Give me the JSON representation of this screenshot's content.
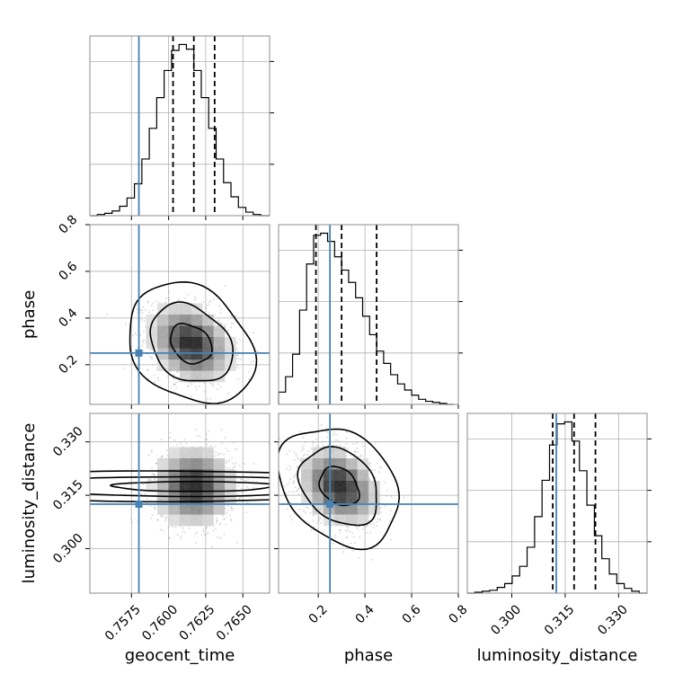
{
  "chart_data": {
    "type": "corner",
    "parameters": [
      "geocent_time",
      "phase",
      "luminosity_distance"
    ],
    "injection": {
      "geocent_time": 0.758,
      "phase": 0.25,
      "luminosity_distance": 0.3125
    },
    "quantiles": {
      "geocent_time": [
        0.7603,
        0.7617,
        0.7631
      ],
      "phase": [
        0.19,
        0.3,
        0.45
      ],
      "luminosity_distance": [
        0.3115,
        0.3175,
        0.3235
      ]
    },
    "axes": {
      "geocent_time": {
        "range": [
          0.7547,
          0.7668
        ],
        "ticks": [
          0.7575,
          0.76,
          0.7625,
          0.765
        ],
        "tick_labels": [
          "0.7575",
          "0.7600",
          "0.7625",
          "0.7650"
        ]
      },
      "phase": {
        "range": [
          0.03,
          0.8
        ],
        "ticks": [
          0.2,
          0.4,
          0.6,
          0.8
        ],
        "tick_labels": [
          "0.2",
          "0.4",
          "0.6",
          "0.8"
        ]
      },
      "luminosity_distance": {
        "range": [
          0.2875,
          0.338
        ],
        "ticks": [
          0.3,
          0.315,
          0.33
        ],
        "tick_labels": [
          "0.300",
          "0.315",
          "0.330"
        ]
      }
    },
    "marginals": {
      "geocent_time": {
        "bin_edges": [
          0.7547,
          0.7552,
          0.7557,
          0.7562,
          0.7567,
          0.7572,
          0.7577,
          0.7582,
          0.7587,
          0.7592,
          0.7597,
          0.7602,
          0.7607,
          0.7612,
          0.7617,
          0.7622,
          0.7627,
          0.7632,
          0.7637,
          0.7642,
          0.7647,
          0.7652,
          0.7657,
          0.7662,
          0.7668
        ],
        "counts": [
          0,
          1,
          2,
          4,
          8,
          15,
          27,
          48,
          74,
          100,
          123,
          140,
          145,
          141,
          123,
          100,
          74,
          48,
          28,
          16,
          7,
          3,
          1,
          0
        ]
      },
      "phase": {
        "bin_edges": [
          0.03,
          0.06,
          0.09,
          0.12,
          0.15,
          0.18,
          0.21,
          0.24,
          0.27,
          0.3,
          0.33,
          0.36,
          0.39,
          0.42,
          0.45,
          0.48,
          0.51,
          0.54,
          0.57,
          0.6,
          0.63,
          0.66,
          0.69,
          0.72,
          0.75,
          0.78
        ],
        "counts": [
          12,
          27,
          49,
          92,
          137,
          165,
          167,
          159,
          144,
          131,
          119,
          104,
          86,
          68,
          52,
          40,
          29,
          20,
          14,
          9,
          5,
          3,
          2,
          1,
          0
        ]
      },
      "luminosity_distance": {
        "bin_edges": [
          0.2875,
          0.2896,
          0.2917,
          0.2938,
          0.2959,
          0.298,
          0.3001,
          0.3022,
          0.3043,
          0.3064,
          0.3085,
          0.3106,
          0.3127,
          0.3148,
          0.3169,
          0.319,
          0.3211,
          0.3232,
          0.3253,
          0.3274,
          0.3295,
          0.3316,
          0.3337,
          0.3358,
          0.338
        ],
        "counts": [
          0,
          1,
          2,
          3,
          6,
          10,
          18,
          28,
          48,
          80,
          118,
          155,
          177,
          179,
          159,
          128,
          92,
          60,
          36,
          20,
          10,
          5,
          2,
          0
        ]
      }
    },
    "joint": [
      {
        "x": "geocent_time",
        "y": "phase",
        "mean": [
          0.7615,
          0.29
        ],
        "sd": [
          0.0014,
          0.085
        ],
        "corr": -0.25,
        "contour_levels": [
          0.39,
          0.86,
          0.99
        ]
      },
      {
        "x": "geocent_time",
        "y": "luminosity_distance",
        "mean": [
          0.7617,
          0.3175
        ],
        "sd": [
          0.0014,
          0.0055
        ],
        "corr": 0.0,
        "contour_levels": [
          0.39,
          0.86,
          0.99
        ]
      },
      {
        "x": "phase",
        "y": "luminosity_distance",
        "mean": [
          0.29,
          0.3175
        ],
        "sd": [
          0.085,
          0.0055
        ],
        "corr": -0.28,
        "contour_levels": [
          0.39,
          0.86,
          0.99
        ]
      }
    ],
    "colors": {
      "injection": "#4682b4",
      "histogram": "#000000",
      "grid": "#b0b0b0",
      "points": "#9a9a9a"
    },
    "grid": true
  }
}
